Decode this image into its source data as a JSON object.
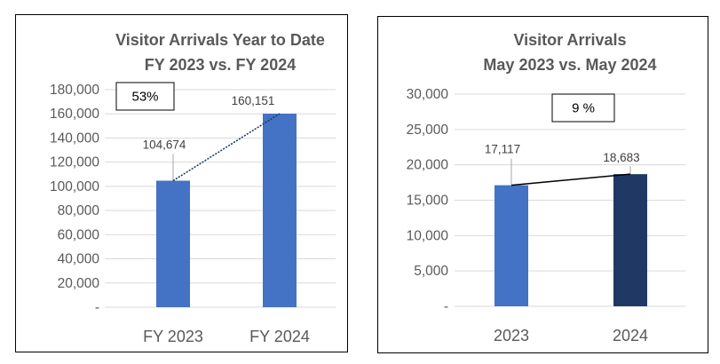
{
  "chart_data": [
    {
      "type": "bar",
      "title": [
        "Visitor Arrivals Year to Date",
        "FY 2023 vs. FY 2024"
      ],
      "categories": [
        "FY 2023",
        "FY 2024"
      ],
      "values": [
        104674,
        160151
      ],
      "data_labels": [
        "104,674",
        "160,151"
      ],
      "bar_colors": [
        "#4472c4",
        "#4472c4"
      ],
      "ylim": [
        0,
        180000
      ],
      "yticks": [
        0,
        20000,
        40000,
        60000,
        80000,
        100000,
        120000,
        140000,
        160000,
        180000
      ],
      "ytick_labels": [
        "-",
        "20,000",
        "40,000",
        "60,000",
        "80,000",
        "100,000",
        "120,000",
        "140,000",
        "160,000",
        "180,000"
      ],
      "change_label": "53%",
      "connector_line": "dotted",
      "grid": true
    },
    {
      "type": "bar",
      "title": [
        "Visitor Arrivals",
        "May 2023 vs. May 2024"
      ],
      "categories": [
        "2023",
        "2024"
      ],
      "values": [
        17117,
        18683
      ],
      "data_labels": [
        "17,117",
        "18,683"
      ],
      "bar_colors": [
        "#4472c4",
        "#203864"
      ],
      "ylim": [
        0,
        30000
      ],
      "yticks": [
        0,
        5000,
        10000,
        15000,
        20000,
        25000,
        30000
      ],
      "ytick_labels": [
        "-",
        "5,000",
        "10,000",
        "15,000",
        "20,000",
        "25,000",
        "30,000"
      ],
      "change_label": "9 %",
      "connector_line": "solid",
      "grid": true
    }
  ]
}
